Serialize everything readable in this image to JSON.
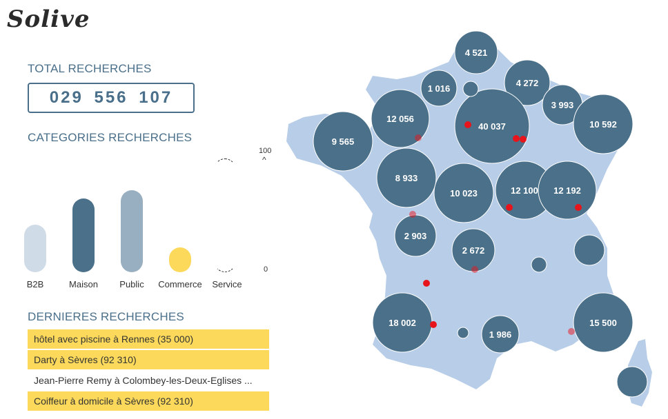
{
  "logo": "Solive",
  "total": {
    "title": "TOTAL RECHERCHES",
    "value": "029  556  107"
  },
  "categories": {
    "title": "CATEGORIES RECHERCHES",
    "axis_max": "100",
    "axis_min": "0",
    "items": [
      {
        "label": "B2B",
        "level": 0.42,
        "color": "#cfdbe7"
      },
      {
        "label": "Maison",
        "level": 0.65,
        "color": "#4b7089"
      },
      {
        "label": "Public",
        "level": 0.72,
        "color": "#98afc1"
      },
      {
        "label": "Commerce",
        "level": 0.22,
        "color": "#fcd95a"
      },
      {
        "label": "Service",
        "level": 1.0,
        "color": "#ffffff"
      }
    ]
  },
  "recent": {
    "title": "DERNIERES RECHERCHES",
    "items": [
      {
        "text": "hôtel avec piscine à Rennes (35 000)",
        "highlight": true
      },
      {
        "text": "Darty à Sèvres (92 310)",
        "highlight": true
      },
      {
        "text": "Jean-Pierre Remy à Colombey-les-Deux-Eglises ...",
        "highlight": false
      },
      {
        "text": "Coiffeur à domicile à Sèvres (92 310)",
        "highlight": true
      }
    ]
  },
  "map": {
    "land_color": "#b8cde8",
    "bubble_color": "#4b7089",
    "dot_color": "#e8141c",
    "bubbles": [
      {
        "label": "4 521"
      },
      {
        "label": "1 016"
      },
      {
        "label": "4 272"
      },
      {
        "label": "3 993"
      },
      {
        "label": "12 056"
      },
      {
        "label": "40 037"
      },
      {
        "label": "10 592"
      },
      {
        "label": "9 565"
      },
      {
        "label": "8 933"
      },
      {
        "label": "10 023"
      },
      {
        "label": "12 100"
      },
      {
        "label": "12 192"
      },
      {
        "label": "2 903"
      },
      {
        "label": "2 672"
      },
      {
        "label": "18 002"
      },
      {
        "label": "1 986"
      },
      {
        "label": "15 500"
      },
      {
        "label": ""
      },
      {
        "label": ""
      },
      {
        "label": ""
      },
      {
        "label": ""
      },
      {
        "label": ""
      }
    ]
  }
}
